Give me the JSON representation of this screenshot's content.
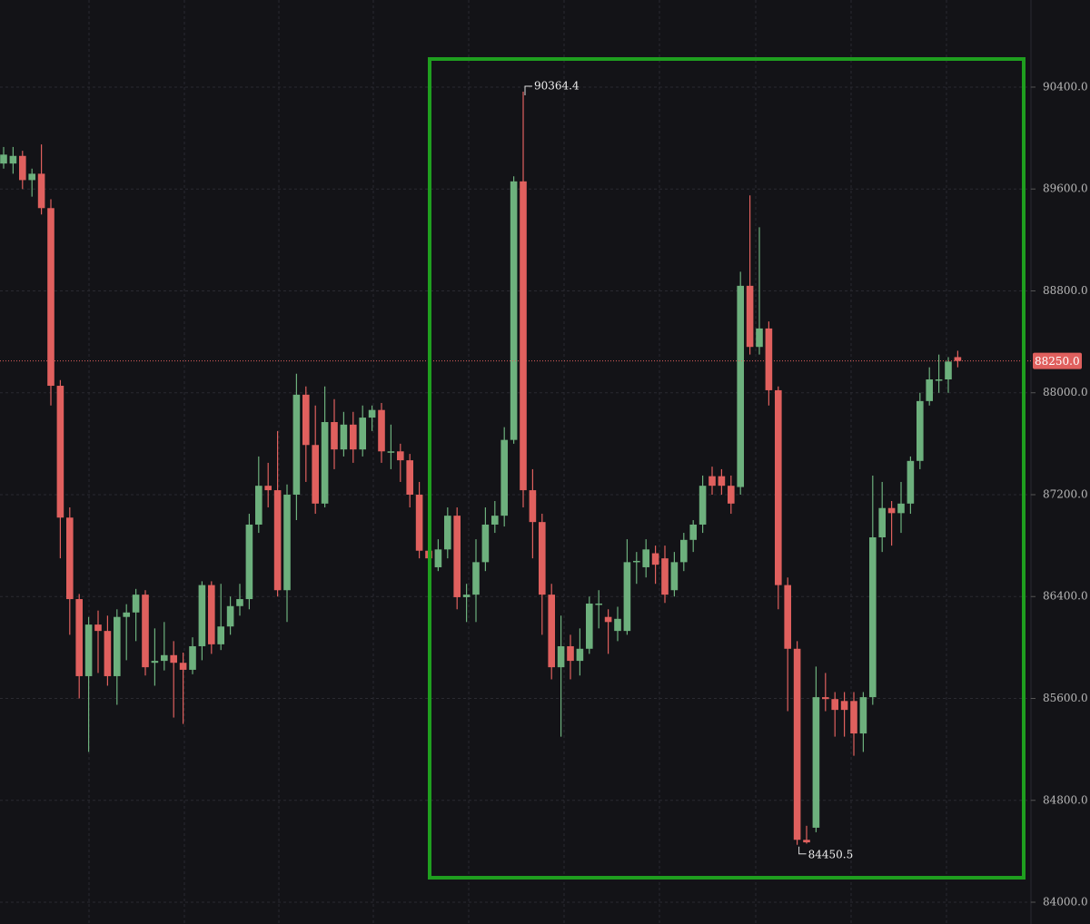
{
  "chart_data": {
    "type": "candlestick",
    "open": [
      89800,
      89800,
      89860,
      89670,
      89720,
      89450,
      88055,
      87020,
      86380,
      85775,
      86180,
      86130,
      85775,
      86240,
      86275,
      86415,
      85880,
      85895,
      85940,
      85880,
      85825,
      86010,
      86490,
      86025,
      86165,
      86325,
      86380,
      86965,
      87270,
      87235,
      86450,
      87200,
      87985,
      87590,
      87130,
      87770,
      87555,
      87750,
      87555,
      87805,
      87865,
      87540,
      87540,
      87470,
      87200,
      86760,
      86630,
      86770,
      87035,
      86395,
      86415,
      86670,
      86965,
      87035,
      87630,
      89660,
      87235,
      86985,
      86415,
      85845,
      86010,
      85895,
      85990,
      86345,
      86240,
      86130,
      86130,
      86670,
      86630,
      86740,
      86700,
      86450,
      86670,
      86845,
      86965,
      87345,
      87345,
      87270,
      87260,
      88840,
      88360,
      88505,
      88020,
      86490,
      85990,
      84490,
      84585,
      85610,
      85595,
      85580,
      85580,
      85325,
      85610,
      86865,
      87095,
      87055,
      87130,
      87465,
      87935,
      88105,
      88105,
      88280
    ],
    "high": [
      89930,
      89930,
      89900,
      89760,
      89950,
      89520,
      88100,
      87100,
      86420,
      86240,
      86290,
      86250,
      86300,
      86340,
      86460,
      86450,
      86150,
      86200,
      86050,
      85960,
      86080,
      86520,
      86520,
      86500,
      86400,
      86500,
      87050,
      87500,
      87450,
      87700,
      87280,
      88150,
      88050,
      87900,
      88050,
      87950,
      87850,
      87850,
      87900,
      87900,
      87920,
      87750,
      87600,
      87520,
      87300,
      86900,
      86850,
      87100,
      87100,
      86500,
      86850,
      87100,
      87150,
      87730,
      89700,
      90364.4,
      87400,
      87050,
      86500,
      86250,
      86100,
      86150,
      86400,
      86450,
      86300,
      86320,
      86850,
      86750,
      86850,
      86800,
      86800,
      86750,
      86900,
      87000,
      87350,
      87420,
      87400,
      87350,
      88950,
      89550,
      89300,
      88560,
      88050,
      86550,
      86050,
      84600,
      85850,
      85800,
      85650,
      85650,
      85650,
      85650,
      87350,
      87300,
      87150,
      87300,
      87500,
      88000,
      88200,
      88300,
      88280,
      88330
    ],
    "low": [
      89760,
      89720,
      89600,
      89540,
      89400,
      87900,
      86700,
      86100,
      85600,
      85180,
      85800,
      85700,
      85550,
      85900,
      86050,
      85780,
      85700,
      85820,
      85450,
      85400,
      85790,
      85900,
      85950,
      85980,
      86100,
      86250,
      86300,
      86900,
      87100,
      86400,
      86200,
      87000,
      87300,
      87050,
      87100,
      87400,
      87500,
      87450,
      87500,
      87700,
      87450,
      87400,
      87300,
      87100,
      86700,
      86650,
      86600,
      86700,
      86300,
      86200,
      86200,
      86600,
      86900,
      86950,
      87600,
      87100,
      86700,
      86100,
      85750,
      85300,
      85750,
      85780,
      85950,
      86150,
      85950,
      86050,
      86100,
      86500,
      86550,
      86500,
      86350,
      86400,
      86600,
      86750,
      86900,
      87200,
      87200,
      87050,
      87200,
      88300,
      88300,
      87900,
      86300,
      85500,
      84450.5,
      84460,
      84550,
      85500,
      85300,
      85300,
      85150,
      85180,
      85550,
      86750,
      86800,
      86900,
      87050,
      87400,
      87900,
      88000,
      88000,
      88200
    ],
    "close": [
      89870,
      89860,
      89670,
      89720,
      89450,
      88055,
      87020,
      86380,
      85775,
      86180,
      86130,
      85775,
      86240,
      86275,
      86415,
      85845,
      85895,
      85940,
      85880,
      85825,
      86010,
      86490,
      86025,
      86165,
      86325,
      86380,
      86965,
      87270,
      87235,
      86450,
      87200,
      87985,
      87590,
      87130,
      87770,
      87555,
      87750,
      87555,
      87805,
      87865,
      87540,
      87540,
      87470,
      87200,
      86760,
      86700,
      86770,
      87035,
      86395,
      86415,
      86670,
      86965,
      87035,
      87630,
      89660,
      87235,
      86985,
      86415,
      85845,
      86010,
      85895,
      85990,
      86345,
      86345,
      86200,
      86225,
      86670,
      86680,
      86770,
      86650,
      86415,
      86670,
      86845,
      86965,
      87270,
      87270,
      87270,
      87130,
      88840,
      88360,
      88505,
      88020,
      86490,
      85990,
      84490,
      84470,
      85610,
      85595,
      85510,
      85510,
      85325,
      85610,
      86865,
      87095,
      87055,
      87130,
      87465,
      87935,
      88105,
      88105,
      88245,
      88250
    ],
    "up_color": "#6db07d",
    "down_color": "#e0605e",
    "ylim": [
      83829,
      91084
    ],
    "yticks": [
      {
        "value": 84000,
        "label": "84000.0"
      },
      {
        "value": 84800,
        "label": "84800.0"
      },
      {
        "value": 85600,
        "label": "85600.0"
      },
      {
        "value": 86400,
        "label": "86400.0"
      },
      {
        "value": 87200,
        "label": "87200.0"
      },
      {
        "value": 88000,
        "label": "88000.0"
      },
      {
        "value": 88800,
        "label": "88800.0"
      },
      {
        "value": 89600,
        "label": "89600.0"
      },
      {
        "value": 90400,
        "label": "90400.0"
      }
    ],
    "grid": true,
    "high_marker": 90364.4,
    "low_marker": 84450.5,
    "last_price": {
      "value": 88250,
      "label": "88250.0"
    }
  }
}
